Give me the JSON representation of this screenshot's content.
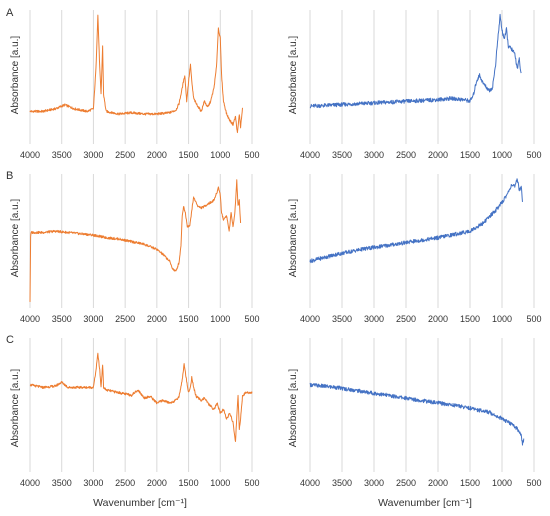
{
  "figure": {
    "panel_letters": [
      "A",
      "B",
      "C"
    ],
    "y_axis_label": "Absorbance [a.u.]",
    "x_axis_label": "Wavenumber [cm⁻¹]",
    "colors": {
      "orange": "#ed7d31",
      "blue": "#4472c4",
      "grid": "#d9d9d9"
    }
  },
  "chart_data": [
    {
      "id": "A-left",
      "type": "line",
      "panel": "A",
      "xlabel": "",
      "ylabel": "Absorbance [a.u.]",
      "xlim": [
        4000,
        500
      ],
      "x_reversed": true,
      "xticks": [
        4000,
        3500,
        3000,
        2500,
        2000,
        1500,
        1000,
        500
      ],
      "ylim": [
        0,
        1
      ],
      "grid": "vertical",
      "color": "#ed7d31",
      "series": [
        {
          "x": [
            4000,
            3800,
            3600,
            3450,
            3300,
            3100,
            3000,
            2960,
            2930,
            2900,
            2880,
            2855,
            2840,
            2800,
            2600,
            2400,
            2200,
            2000,
            1800,
            1700,
            1650,
            1600,
            1560,
            1530,
            1500,
            1470,
            1450,
            1420,
            1380,
            1300,
            1250,
            1200,
            1150,
            1100,
            1060,
            1030,
            1000,
            980,
            950,
            900,
            850,
            800,
            760,
            730,
            700,
            680,
            650
          ],
          "y": [
            0.22,
            0.22,
            0.24,
            0.27,
            0.24,
            0.22,
            0.24,
            0.55,
            0.96,
            0.55,
            0.35,
            0.72,
            0.35,
            0.22,
            0.2,
            0.21,
            0.2,
            0.2,
            0.21,
            0.23,
            0.28,
            0.4,
            0.5,
            0.3,
            0.45,
            0.58,
            0.45,
            0.32,
            0.28,
            0.22,
            0.3,
            0.25,
            0.3,
            0.4,
            0.56,
            0.86,
            0.78,
            0.5,
            0.3,
            0.2,
            0.15,
            0.12,
            0.18,
            0.05,
            0.2,
            0.1,
            0.24
          ]
        }
      ]
    },
    {
      "id": "A-right",
      "type": "line",
      "panel": "A",
      "xlabel": "",
      "ylabel": "Absorbance [a.u.]",
      "xlim": [
        4000,
        500
      ],
      "x_reversed": true,
      "xticks": [
        4000,
        3500,
        3000,
        2500,
        2000,
        1500,
        1000,
        500
      ],
      "ylim": [
        0,
        1
      ],
      "grid": "vertical",
      "color": "#4472c4",
      "series": [
        {
          "x": [
            4000,
            3600,
            3200,
            2800,
            2400,
            2000,
            1800,
            1600,
            1500,
            1450,
            1400,
            1350,
            1300,
            1200,
            1150,
            1100,
            1080,
            1050,
            1030,
            1010,
            990,
            960,
            930,
            900,
            850,
            800,
            760,
            730,
            700
          ],
          "y": [
            0.26,
            0.27,
            0.28,
            0.29,
            0.3,
            0.31,
            0.32,
            0.31,
            0.3,
            0.34,
            0.45,
            0.5,
            0.44,
            0.38,
            0.4,
            0.58,
            0.7,
            0.85,
            0.96,
            0.88,
            0.82,
            0.78,
            0.85,
            0.72,
            0.7,
            0.66,
            0.55,
            0.62,
            0.5
          ]
        }
      ]
    },
    {
      "id": "B-left",
      "type": "line",
      "panel": "B",
      "xlabel": "",
      "ylabel": "Absorbance [a.u.]",
      "xlim": [
        4000,
        500
      ],
      "x_reversed": true,
      "xticks": [
        4000,
        3500,
        3000,
        2500,
        2000,
        1500,
        1000,
        500
      ],
      "ylim": [
        0,
        1
      ],
      "grid": "vertical",
      "color": "#ed7d31",
      "series": [
        {
          "x": [
            4000,
            3990,
            3980,
            3800,
            3600,
            3400,
            3200,
            3000,
            2800,
            2600,
            2400,
            2200,
            2000,
            1900,
            1800,
            1750,
            1700,
            1650,
            1620,
            1600,
            1580,
            1550,
            1520,
            1480,
            1450,
            1420,
            1400,
            1350,
            1300,
            1250,
            1200,
            1150,
            1100,
            1050,
            1030,
            1000,
            980,
            950,
            900,
            860,
            830,
            800,
            770,
            740,
            720,
            700,
            680
          ],
          "y": [
            0.02,
            0.52,
            0.55,
            0.55,
            0.56,
            0.55,
            0.54,
            0.53,
            0.51,
            0.5,
            0.48,
            0.46,
            0.42,
            0.38,
            0.33,
            0.27,
            0.25,
            0.32,
            0.45,
            0.68,
            0.75,
            0.7,
            0.6,
            0.6,
            0.72,
            0.82,
            0.8,
            0.75,
            0.74,
            0.75,
            0.77,
            0.78,
            0.8,
            0.86,
            0.9,
            0.84,
            0.7,
            0.65,
            0.68,
            0.56,
            0.7,
            0.6,
            0.7,
            0.95,
            0.75,
            0.8,
            0.62
          ]
        }
      ]
    },
    {
      "id": "B-right",
      "type": "line",
      "panel": "B",
      "xlabel": "",
      "ylabel": "Absorbance [a.u.]",
      "xlim": [
        4000,
        500
      ],
      "x_reversed": true,
      "xticks": [
        4000,
        3500,
        3000,
        2500,
        2000,
        1500,
        1000,
        500
      ],
      "ylim": [
        0,
        1
      ],
      "grid": "vertical",
      "color": "#4472c4",
      "series": [
        {
          "x": [
            4000,
            3600,
            3200,
            2800,
            2400,
            2000,
            1700,
            1500,
            1300,
            1100,
            1000,
            900,
            850,
            800,
            760,
            730,
            700,
            680
          ],
          "y": [
            0.33,
            0.38,
            0.42,
            0.45,
            0.48,
            0.51,
            0.54,
            0.56,
            0.62,
            0.72,
            0.78,
            0.86,
            0.92,
            0.9,
            0.96,
            0.88,
            0.9,
            0.8
          ]
        }
      ]
    },
    {
      "id": "C-left",
      "type": "line",
      "panel": "C",
      "xlabel": "Wavenumber [cm⁻¹]",
      "ylabel": "Absorbance [a.u.]",
      "xlim": [
        4000,
        500
      ],
      "x_reversed": true,
      "xticks": [
        4000,
        3500,
        3000,
        2500,
        2000,
        1500,
        1000,
        500
      ],
      "ylim": [
        0,
        1
      ],
      "grid": "vertical",
      "color": "#ed7d31",
      "series": [
        {
          "x": [
            4000,
            3800,
            3600,
            3500,
            3400,
            3200,
            3000,
            2960,
            2930,
            2900,
            2880,
            2855,
            2840,
            2800,
            2600,
            2400,
            2300,
            2200,
            2100,
            2000,
            1900,
            1800,
            1700,
            1650,
            1600,
            1570,
            1540,
            1500,
            1470,
            1450,
            1420,
            1380,
            1300,
            1250,
            1200,
            1100,
            1050,
            1000,
            950,
            900,
            850,
            800,
            760,
            740,
            720,
            700,
            680,
            650,
            600,
            550,
            500
          ],
          "y": [
            0.64,
            0.62,
            0.63,
            0.66,
            0.62,
            0.62,
            0.62,
            0.75,
            0.88,
            0.75,
            0.62,
            0.8,
            0.62,
            0.6,
            0.58,
            0.56,
            0.6,
            0.54,
            0.55,
            0.5,
            0.52,
            0.5,
            0.52,
            0.55,
            0.68,
            0.8,
            0.7,
            0.58,
            0.62,
            0.7,
            0.62,
            0.55,
            0.52,
            0.54,
            0.5,
            0.45,
            0.5,
            0.42,
            0.45,
            0.38,
            0.42,
            0.35,
            0.2,
            0.4,
            0.55,
            0.3,
            0.38,
            0.55,
            0.58,
            0.58,
            0.58
          ]
        }
      ]
    },
    {
      "id": "C-right",
      "type": "line",
      "panel": "C",
      "xlabel": "Wavenumber [cm⁻¹]",
      "ylabel": "Absorbance [a.u.]",
      "xlim": [
        4000,
        500
      ],
      "x_reversed": true,
      "xticks": [
        4000,
        3500,
        3000,
        2500,
        2000,
        1500,
        1000,
        500
      ],
      "ylim": [
        0,
        1
      ],
      "grid": "vertical",
      "color": "#4472c4",
      "series": [
        {
          "x": [
            4000,
            3600,
            3200,
            2800,
            2400,
            2000,
            1700,
            1400,
            1200,
            1000,
            900,
            800,
            760,
            730,
            700,
            680,
            660
          ],
          "y": [
            0.64,
            0.62,
            0.59,
            0.56,
            0.53,
            0.5,
            0.48,
            0.45,
            0.43,
            0.38,
            0.35,
            0.32,
            0.3,
            0.28,
            0.25,
            0.18,
            0.22
          ]
        }
      ]
    }
  ]
}
